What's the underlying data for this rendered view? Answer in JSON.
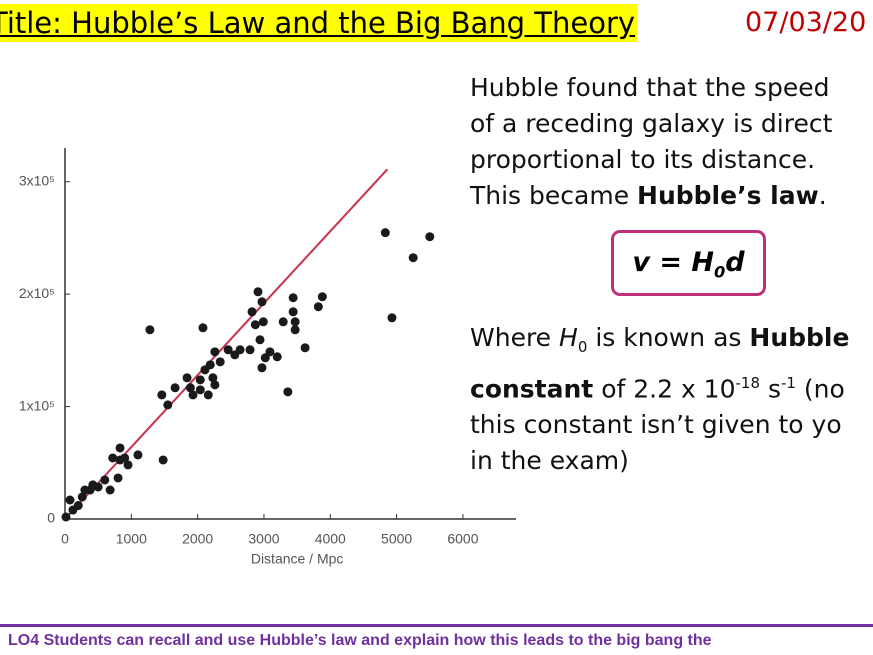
{
  "header": {
    "title": "Title: Hubble’s Law and the Big Bang Theory",
    "date": "07/03/20"
  },
  "intro": [
    "Hubble found that the speed",
    "of a receding galaxy is direct",
    "proportional to its distance.",
    "This became ",
    "Hubble’s law",
    "."
  ],
  "formula": [
    "v",
    "=",
    "H",
    "0",
    "d"
  ],
  "definition": [
    "Where ",
    "H",
    "0",
    " is known as ",
    "Hubble",
    "constant",
    " of 2.2 x 10",
    "-18",
    " s",
    "-1",
    " (no",
    "this constant isn’t given to yo",
    "in the exam)"
  ],
  "footer": "LO4 Students can recall and use Hubble’s law and explain how this leads to the big bang the",
  "chart_data": {
    "type": "scatter",
    "x_label": "Distance / Mpc",
    "color": "#1a1a1a",
    "xlim": [
      0,
      6800
    ],
    "ylim": [
      0,
      330000
    ],
    "xticks": [
      0,
      1000,
      2000,
      3000,
      4000,
      5000,
      6000
    ],
    "yticks": [
      0,
      {
        "value": 100000,
        "label": "1x10⁵"
      },
      {
        "value": 200000,
        "label": "2x10⁵"
      },
      {
        "value": 300000,
        "label": "3x10⁵"
      }
    ],
    "x": [
      15,
      75,
      120,
      200,
      260,
      300,
      380,
      420,
      500,
      600,
      680,
      720,
      800,
      830,
      830,
      900,
      950,
      1100,
      1280,
      1460,
      1480,
      1550,
      1660,
      1840,
      1890,
      1930,
      2040,
      2040,
      2110,
      2080,
      2160,
      2190,
      2230,
      2260,
      2260,
      2340,
      2460,
      2560,
      2640,
      2790,
      2820,
      2870,
      2910,
      2940,
      2970,
      2970,
      2990,
      3020,
      3090,
      3200,
      3290,
      3360,
      3440,
      3440,
      3470,
      3470,
      3620,
      3820,
      3880,
      4830,
      4930,
      5250,
      5500
    ],
    "y": [
      1800,
      16900,
      8000,
      12000,
      19600,
      25800,
      25800,
      30300,
      28500,
      34700,
      25800,
      54300,
      36500,
      52500,
      63200,
      54300,
      48100,
      57000,
      168300,
      110400,
      52500,
      101500,
      116700,
      125600,
      116700,
      110400,
      123800,
      114900,
      132700,
      170100,
      110400,
      137100,
      125600,
      119300,
      148700,
      139800,
      150500,
      146000,
      150500,
      150500,
      184300,
      172800,
      202100,
      159400,
      134500,
      193200,
      175400,
      143400,
      148700,
      144300,
      175400,
      113100,
      196800,
      184300,
      175400,
      168300,
      152300,
      188800,
      197700,
      254700,
      179000,
      232400,
      251100
    ],
    "fit": {
      "color": "#c8324a",
      "x": [
        0,
        4860
      ],
      "y": [
        0,
        311000
      ]
    }
  }
}
